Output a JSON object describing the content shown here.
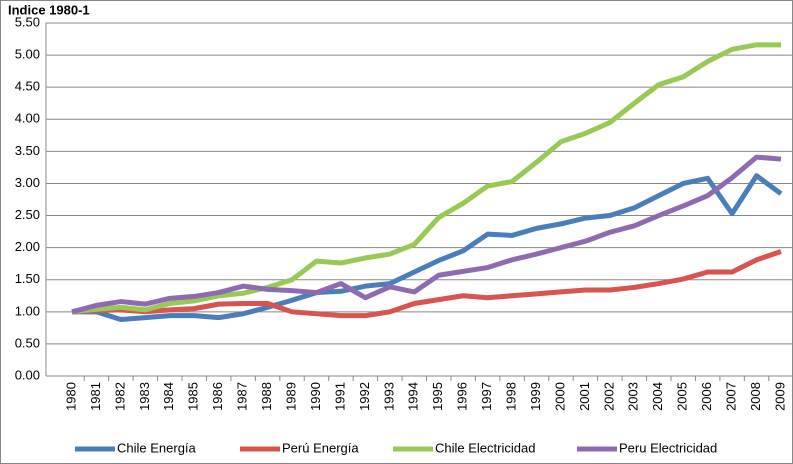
{
  "chart_data": {
    "type": "line",
    "title": "Indice 1980-1",
    "categories": [
      "1980",
      "1981",
      "1982",
      "1983",
      "1984",
      "1985",
      "1986",
      "1987",
      "1988",
      "1989",
      "1990",
      "1991",
      "1992",
      "1993",
      "1994",
      "1995",
      "1996",
      "1997",
      "1998",
      "1999",
      "2000",
      "2001",
      "2002",
      "2003",
      "2004",
      "2005",
      "2006",
      "2007",
      "2008",
      "2009"
    ],
    "series": [
      {
        "name": "Chile Energía",
        "color": "#4a7ebb",
        "values": [
          1.0,
          1.0,
          0.88,
          0.91,
          0.94,
          0.94,
          0.91,
          0.97,
          1.07,
          1.18,
          1.3,
          1.32,
          1.4,
          1.44,
          1.62,
          1.8,
          1.95,
          2.21,
          2.19,
          2.3,
          2.37,
          2.46,
          2.5,
          2.62,
          2.81,
          3.0,
          3.08,
          2.53,
          3.12,
          2.84
        ]
      },
      {
        "name": "Perú Energía",
        "color": "#d9534f",
        "values": [
          1.0,
          1.02,
          1.03,
          1.0,
          1.03,
          1.05,
          1.12,
          1.13,
          1.13,
          1.0,
          0.97,
          0.94,
          0.94,
          1.0,
          1.13,
          1.19,
          1.25,
          1.22,
          1.25,
          1.28,
          1.31,
          1.34,
          1.34,
          1.38,
          1.44,
          1.51,
          1.62,
          1.62,
          1.81,
          1.94
        ]
      },
      {
        "name": "Chile Electricidad",
        "color": "#98c954",
        "values": [
          1.0,
          1.04,
          1.07,
          1.03,
          1.13,
          1.17,
          1.25,
          1.29,
          1.38,
          1.5,
          1.79,
          1.76,
          1.84,
          1.9,
          2.05,
          2.47,
          2.69,
          2.96,
          3.03,
          3.33,
          3.65,
          3.78,
          3.95,
          4.25,
          4.54,
          4.66,
          4.9,
          5.09,
          5.16,
          5.16
        ]
      },
      {
        "name": "Peru Electricidad",
        "color": "#8e6bb0",
        "values": [
          1.0,
          1.1,
          1.16,
          1.12,
          1.21,
          1.24,
          1.3,
          1.4,
          1.35,
          1.33,
          1.3,
          1.44,
          1.22,
          1.39,
          1.31,
          1.57,
          1.63,
          1.69,
          1.81,
          1.9,
          2.0,
          2.1,
          2.24,
          2.34,
          2.5,
          2.65,
          2.81,
          3.09,
          3.41,
          3.38
        ]
      }
    ],
    "ylim": [
      0,
      5.5
    ],
    "yticks": [
      {
        "value": 0,
        "label": "0.00"
      },
      {
        "value": 0.5,
        "label": "0.50"
      },
      {
        "value": 1,
        "label": "1.00"
      },
      {
        "value": 1.5,
        "label": "1.50"
      },
      {
        "value": 2,
        "label": "2.00"
      },
      {
        "value": 2.5,
        "label": "2.50"
      },
      {
        "value": 3,
        "label": "3.00"
      },
      {
        "value": 3.5,
        "label": "3.50"
      },
      {
        "value": 4,
        "label": "4.00"
      },
      {
        "value": 4.5,
        "label": "4.50"
      },
      {
        "value": 5,
        "label": "5.00"
      },
      {
        "value": 5.5,
        "label": "5.50"
      }
    ],
    "grid": true,
    "legend": "bottom"
  }
}
